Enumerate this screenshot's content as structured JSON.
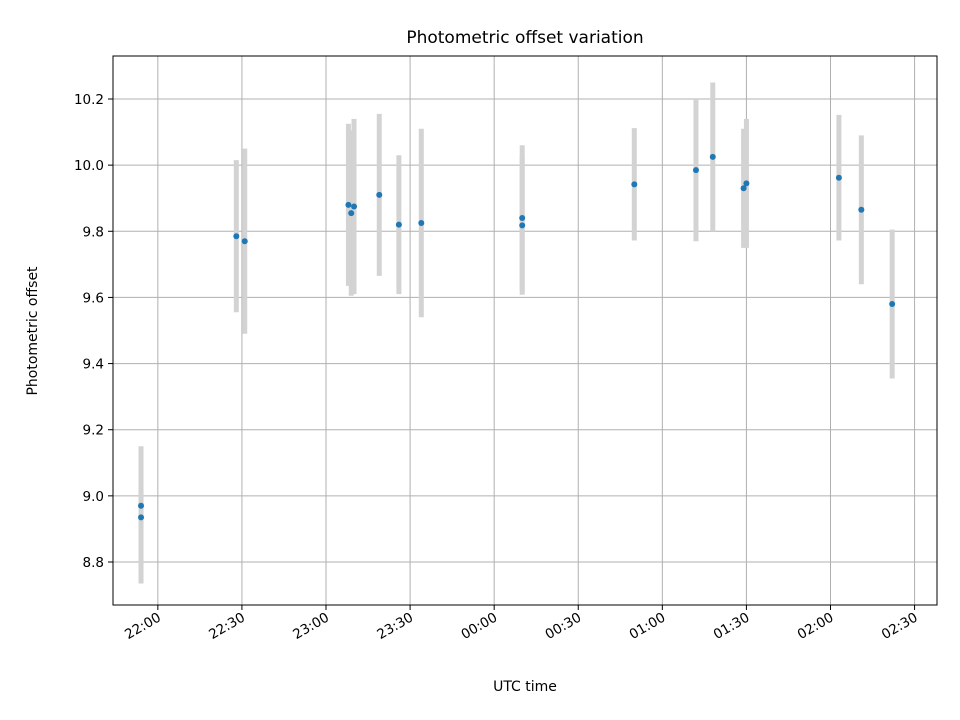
{
  "chart_data": {
    "type": "scatter",
    "title": "Photometric offset variation",
    "xlabel": "UTC time",
    "ylabel": "Photometric offset",
    "x_axis": {
      "kind": "time",
      "range_minutes_from_midnight": [
        -136,
        158
      ],
      "ticks": [
        {
          "t": -120,
          "label": "22:00"
        },
        {
          "t": -90,
          "label": "22:30"
        },
        {
          "t": -60,
          "label": "23:00"
        },
        {
          "t": -30,
          "label": "23:30"
        },
        {
          "t": 0,
          "label": "00:00"
        },
        {
          "t": 30,
          "label": "00:30"
        },
        {
          "t": 60,
          "label": "01:00"
        },
        {
          "t": 90,
          "label": "01:30"
        },
        {
          "t": 120,
          "label": "02:00"
        },
        {
          "t": 150,
          "label": "02:30"
        }
      ]
    },
    "y_axis": {
      "range": [
        8.67,
        10.33
      ],
      "ticks": [
        8.8,
        9.0,
        9.2,
        9.4,
        9.6,
        9.8,
        10.0,
        10.2
      ],
      "tick_labels": [
        "8.8",
        "9.0",
        "9.2",
        "9.4",
        "9.6",
        "9.8",
        "10.0",
        "10.2"
      ]
    },
    "grid": true,
    "colors": {
      "point": "#1f77b4",
      "errorbar": "#d3d3d3",
      "grid": "#b0b0b0"
    },
    "points": [
      {
        "time": "21:54",
        "y": 8.97,
        "yerr": 0.18
      },
      {
        "time": "21:54",
        "y": 8.935,
        "yerr": 0.2
      },
      {
        "time": "22:28",
        "y": 9.785,
        "yerr": 0.23
      },
      {
        "time": "22:31",
        "y": 9.77,
        "yerr": 0.28
      },
      {
        "time": "23:08",
        "y": 9.88,
        "yerr": 0.245
      },
      {
        "time": "23:09",
        "y": 9.855,
        "yerr": 0.25
      },
      {
        "time": "23:10",
        "y": 9.875,
        "yerr": 0.265
      },
      {
        "time": "23:19",
        "y": 9.91,
        "yerr": 0.245
      },
      {
        "time": "23:26",
        "y": 9.82,
        "yerr": 0.21
      },
      {
        "time": "23:34",
        "y": 9.825,
        "yerr": 0.285
      },
      {
        "time": "00:10",
        "y": 9.84,
        "yerr": 0.22
      },
      {
        "time": "00:10",
        "y": 9.818,
        "yerr": 0.21
      },
      {
        "time": "00:50",
        "y": 9.942,
        "yerr": 0.17
      },
      {
        "time": "01:12",
        "y": 9.985,
        "yerr": 0.215
      },
      {
        "time": "01:18",
        "y": 10.025,
        "yerr": 0.225
      },
      {
        "time": "01:29",
        "y": 9.93,
        "yerr": 0.18
      },
      {
        "time": "01:30",
        "y": 9.945,
        "yerr": 0.195
      },
      {
        "time": "02:03",
        "y": 9.962,
        "yerr": 0.19
      },
      {
        "time": "02:11",
        "y": 9.865,
        "yerr": 0.225
      },
      {
        "time": "02:22",
        "y": 9.58,
        "yerr": 0.225
      }
    ]
  }
}
